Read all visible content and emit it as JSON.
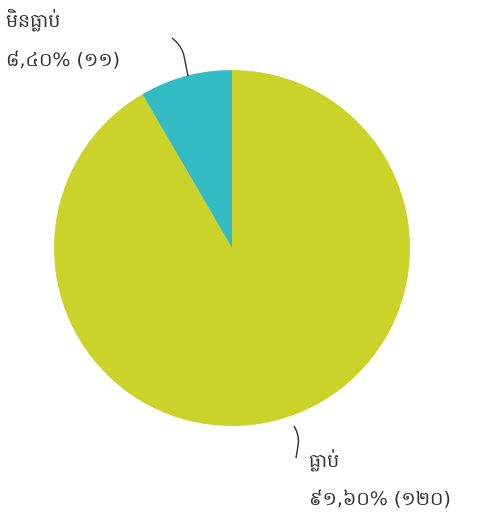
{
  "chart_data": {
    "type": "pie",
    "title": "",
    "slices": [
      {
        "name": "ធ្លាប់",
        "percent_label": "៩១,៦០% (១២០)",
        "percent": 91.6,
        "count": 120,
        "color": "#cbd22a"
      },
      {
        "name": "មិនធ្លាប់",
        "percent_label": "៨,៤០% (១១)",
        "percent": 8.4,
        "count": 11,
        "color": "#34bcc4"
      }
    ],
    "start_angle": "12 o'clock",
    "direction": "clockwise",
    "legend": "none"
  }
}
